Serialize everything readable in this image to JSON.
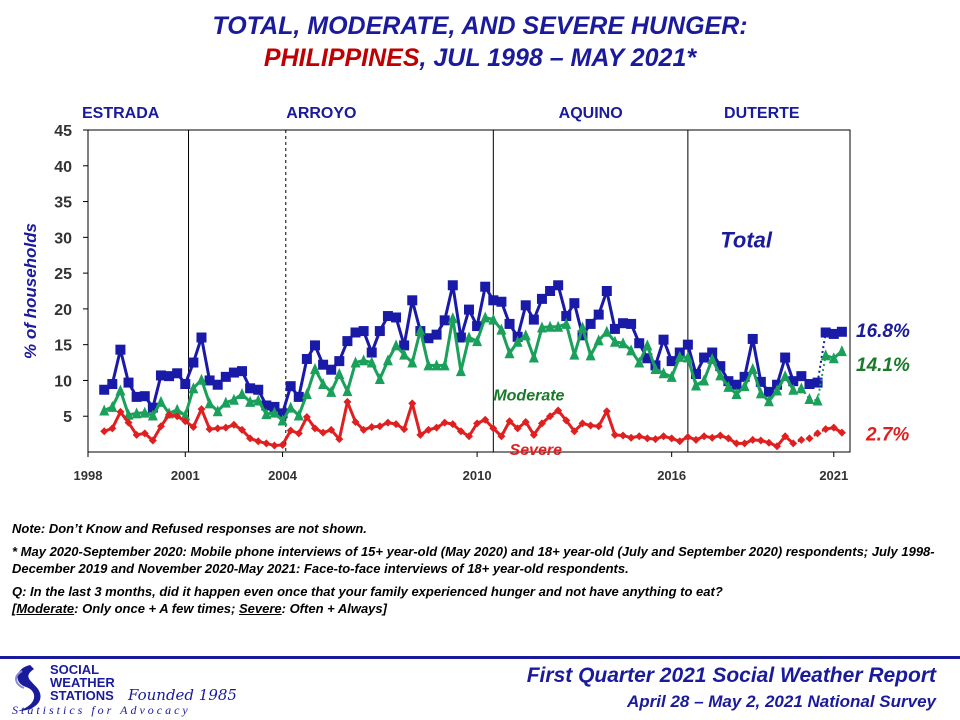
{
  "title": {
    "line1": "TOTAL, MODERATE, AND SEVERE HUNGER:",
    "line2_country": "PHILIPPINES",
    "line2_rest": ", JUL 1998 – MAY 2021*"
  },
  "colors": {
    "total": "#1a1aa8",
    "moderate": "#1aa05a",
    "severe": "#e02020",
    "moderate_label": "#1a7a2a",
    "title": "#1a1a9c",
    "accent_red": "#c00000"
  },
  "chart_data": {
    "type": "line",
    "title": "TOTAL, MODERATE, AND SEVERE HUNGER: PHILIPPINES, JUL 1998 – MAY 2021*",
    "ylabel": "% of households",
    "xlabel": "",
    "ylim": [
      0,
      45
    ],
    "yticks": [
      5,
      10,
      15,
      20,
      25,
      30,
      35,
      40,
      45
    ],
    "xlim": [
      1998,
      2021.5
    ],
    "xticks": [
      {
        "value": 1998,
        "label": "1998"
      },
      {
        "value": 2001,
        "label": "2001"
      },
      {
        "value": 2004,
        "label": "2004"
      },
      {
        "value": 2010,
        "label": "2010"
      },
      {
        "value": 2016,
        "label": "2016"
      },
      {
        "value": 2021,
        "label": "2021"
      }
    ],
    "eras": [
      {
        "name": "ESTRADA",
        "label_x": 1998.0
      },
      {
        "name": "ARROYO",
        "label_x": 2004.3
      },
      {
        "name": "AQUINO",
        "label_x": 2012.7
      },
      {
        "name": "DUTERTE",
        "label_x": 2017.8
      }
    ],
    "era_boundaries": [
      {
        "x": 2001.1,
        "style": "solid"
      },
      {
        "x": 2004.1,
        "style": "dashed"
      },
      {
        "x": 2010.5,
        "style": "solid"
      },
      {
        "x": 2016.5,
        "style": "solid"
      }
    ],
    "series": [
      {
        "name": "Total",
        "x": [
          1998.5,
          1998.75,
          1999.0,
          1999.25,
          1999.5,
          1999.75,
          2000.0,
          2000.25,
          2000.5,
          2000.75,
          2001.0,
          2001.25,
          2001.5,
          2001.75,
          2002.0,
          2002.25,
          2002.5,
          2002.75,
          2003.0,
          2003.25,
          2003.5,
          2003.75,
          2004.0,
          2004.25,
          2004.5,
          2004.75,
          2005.0,
          2005.25,
          2005.5,
          2005.75,
          2006.0,
          2006.25,
          2006.5,
          2006.75,
          2007.0,
          2007.25,
          2007.5,
          2007.75,
          2008.0,
          2008.25,
          2008.5,
          2008.75,
          2009.0,
          2009.25,
          2009.5,
          2009.75,
          2010.0,
          2010.25,
          2010.5,
          2010.75,
          2011.0,
          2011.25,
          2011.5,
          2011.75,
          2012.0,
          2012.25,
          2012.5,
          2012.75,
          2013.0,
          2013.25,
          2013.5,
          2013.75,
          2014.0,
          2014.25,
          2014.5,
          2014.75,
          2015.0,
          2015.25,
          2015.5,
          2015.75,
          2016.0,
          2016.25,
          2016.5,
          2016.75,
          2017.0,
          2017.25,
          2017.5,
          2017.75,
          2018.0,
          2018.25,
          2018.5,
          2018.75,
          2019.0,
          2019.25,
          2019.5,
          2019.75,
          2020.0,
          2020.25,
          2020.5,
          2020.75,
          2021.0,
          2021.25
        ],
        "values": [
          8.7,
          9.5,
          14.3,
          9.7,
          7.7,
          7.8,
          6.2,
          10.7,
          10.6,
          11.0,
          9.5,
          12.5,
          16.0,
          10.0,
          9.4,
          10.5,
          11.1,
          11.3,
          8.9,
          8.7,
          6.5,
          6.3,
          5.4,
          9.2,
          7.7,
          13.0,
          14.9,
          12.2,
          11.5,
          12.7,
          15.5,
          16.7,
          16.9,
          13.9,
          16.9,
          19.0,
          18.8,
          14.9,
          21.2,
          16.9,
          15.9,
          16.4,
          18.4,
          23.3,
          16.0,
          19.9,
          17.6,
          23.1,
          21.2,
          21.0,
          17.9,
          16.1,
          20.5,
          18.5,
          21.4,
          22.5,
          23.3,
          19.0,
          20.8,
          16.3,
          17.9,
          19.2,
          22.5,
          17.2,
          18.0,
          17.9,
          15.2,
          13.1,
          12.1,
          15.7,
          12.7,
          13.9,
          15.0,
          10.9,
          13.2,
          13.9,
          12.0,
          9.9,
          9.4,
          10.5,
          15.8,
          9.8,
          8.4,
          9.4,
          13.2,
          9.9,
          10.6,
          9.5,
          9.7,
          16.7,
          16.5,
          16.8
        ]
      },
      {
        "name": "Moderate",
        "x": [
          1998.5,
          1998.75,
          1999.0,
          1999.25,
          1999.5,
          1999.75,
          2000.0,
          2000.25,
          2000.5,
          2000.75,
          2001.0,
          2001.25,
          2001.5,
          2001.75,
          2002.0,
          2002.25,
          2002.5,
          2002.75,
          2003.0,
          2003.25,
          2003.5,
          2003.75,
          2004.0,
          2004.25,
          2004.5,
          2004.75,
          2005.0,
          2005.25,
          2005.5,
          2005.75,
          2006.0,
          2006.25,
          2006.5,
          2006.75,
          2007.0,
          2007.25,
          2007.5,
          2007.75,
          2008.0,
          2008.25,
          2008.5,
          2008.75,
          2009.0,
          2009.25,
          2009.5,
          2009.75,
          2010.0,
          2010.25,
          2010.5,
          2010.75,
          2011.0,
          2011.25,
          2011.5,
          2011.75,
          2012.0,
          2012.25,
          2012.5,
          2012.75,
          2013.0,
          2013.25,
          2013.5,
          2013.75,
          2014.0,
          2014.25,
          2014.5,
          2014.75,
          2015.0,
          2015.25,
          2015.5,
          2015.75,
          2016.0,
          2016.25,
          2016.5,
          2016.75,
          2017.0,
          2017.25,
          2017.5,
          2017.75,
          2018.0,
          2018.25,
          2018.5,
          2018.75,
          2019.0,
          2019.25,
          2019.5,
          2019.75,
          2020.0,
          2020.25,
          2020.5,
          2020.75,
          2021.0,
          2021.25
        ],
        "values": [
          5.8,
          6.3,
          8.6,
          5.2,
          5.4,
          5.5,
          5.1,
          7.0,
          5.4,
          5.9,
          5.1,
          8.9,
          10.1,
          6.8,
          5.7,
          6.9,
          7.3,
          8.1,
          7.0,
          7.2,
          5.3,
          5.5,
          4.4,
          6.2,
          5.1,
          8.1,
          11.6,
          9.5,
          8.4,
          10.9,
          8.5,
          12.5,
          12.8,
          12.5,
          10.2,
          12.8,
          14.9,
          13.6,
          12.5,
          17.0,
          12.1,
          12.1,
          12.1,
          18.7,
          11.3,
          16.0,
          15.5,
          18.8,
          18.5,
          17.1,
          13.8,
          15.4,
          16.3,
          13.2,
          17.4,
          17.5,
          17.5,
          17.9,
          13.6,
          17.4,
          13.5,
          15.6,
          16.8,
          15.4,
          15.2,
          14.2,
          12.5,
          14.9,
          11.6,
          11.0,
          10.5,
          13.3,
          13.2,
          9.3,
          10.0,
          13.0,
          10.7,
          9.1,
          8.1,
          9.2,
          11.6,
          8.2,
          7.1,
          8.6,
          10.6,
          8.7,
          8.9,
          7.4,
          7.2,
          13.5,
          13.1,
          14.1
        ]
      },
      {
        "name": "Severe",
        "x": [
          1998.5,
          1998.75,
          1999.0,
          1999.25,
          1999.5,
          1999.75,
          2000.0,
          2000.25,
          2000.5,
          2000.75,
          2001.0,
          2001.25,
          2001.5,
          2001.75,
          2002.0,
          2002.25,
          2002.5,
          2002.75,
          2003.0,
          2003.25,
          2003.5,
          2003.75,
          2004.0,
          2004.25,
          2004.5,
          2004.75,
          2005.0,
          2005.25,
          2005.5,
          2005.75,
          2006.0,
          2006.25,
          2006.5,
          2006.75,
          2007.0,
          2007.25,
          2007.5,
          2007.75,
          2008.0,
          2008.25,
          2008.5,
          2008.75,
          2009.0,
          2009.25,
          2009.5,
          2009.75,
          2010.0,
          2010.25,
          2010.5,
          2010.75,
          2011.0,
          2011.25,
          2011.5,
          2011.75,
          2012.0,
          2012.25,
          2012.5,
          2012.75,
          2013.0,
          2013.25,
          2013.5,
          2013.75,
          2014.0,
          2014.25,
          2014.5,
          2014.75,
          2015.0,
          2015.25,
          2015.5,
          2015.75,
          2016.0,
          2016.25,
          2016.5,
          2016.75,
          2017.0,
          2017.25,
          2017.5,
          2017.75,
          2018.0,
          2018.25,
          2018.5,
          2018.75,
          2019.0,
          2019.25,
          2019.5,
          2019.75,
          2020.0,
          2020.25,
          2020.5,
          2020.75,
          2021.0,
          2021.25
        ],
        "values": [
          2.9,
          3.3,
          5.6,
          4.1,
          2.4,
          2.6,
          1.6,
          3.6,
          5.2,
          5.0,
          4.3,
          3.5,
          6.0,
          3.2,
          3.3,
          3.4,
          3.8,
          3.1,
          1.9,
          1.5,
          1.2,
          0.9,
          1.0,
          3.0,
          2.6,
          4.9,
          3.3,
          2.7,
          3.1,
          1.8,
          7.0,
          4.2,
          3.1,
          3.5,
          3.6,
          4.1,
          3.9,
          3.2,
          6.8,
          2.4,
          3.1,
          3.4,
          4.1,
          3.9,
          2.9,
          2.2,
          4.0,
          4.5,
          3.3,
          2.2,
          4.3,
          3.3,
          4.2,
          2.4,
          4.0,
          5.0,
          5.8,
          4.4,
          2.9,
          4.0,
          3.7,
          3.6,
          5.7,
          2.4,
          2.3,
          2.0,
          2.2,
          1.9,
          1.8,
          2.2,
          1.9,
          1.5,
          2.1,
          1.7,
          2.2,
          2.0,
          2.3,
          1.9,
          1.2,
          1.2,
          1.7,
          1.6,
          1.3,
          0.8,
          2.2,
          1.2,
          1.7,
          1.9,
          2.6,
          3.2,
          3.4,
          2.7
        ]
      }
    ],
    "series_labels": {
      "total": "Total",
      "moderate": "Moderate",
      "severe": "Severe"
    },
    "end_labels": {
      "total": "16.8%",
      "moderate": "14.1%",
      "severe": "2.7%"
    }
  },
  "notes": {
    "note1": "Note: Don’t Know and Refused responses are not shown.",
    "note2": "* May 2020-September 2020: Mobile phone interviews of 15+ year-old (May 2020) and 18+ year-old (July and September 2020) respondents; July 1998-December 2019 and November 2020-May 2021: Face-to-face interviews of 18+ year-old respondents.",
    "question": "Q: In the last 3 months, did it happen even once that your family experienced hunger and not have anything to eat?",
    "def_open": "[",
    "def_moderate_label": "Moderate",
    "def_moderate_text": ": Only once + A few times; ",
    "def_severe_label": "Severe",
    "def_severe_text": ": Often + Always]"
  },
  "footer": {
    "logo_line1": "SOCIAL",
    "logo_line2": "WEATHER",
    "logo_line3": "STATIONS",
    "logo_founded": "Founded 1985",
    "logo_tagline": "Statistics for Advocacy",
    "report_title": "First Quarter 2021 Social Weather Report",
    "report_dates": "April 28 – May 2, 2021 National Survey"
  }
}
